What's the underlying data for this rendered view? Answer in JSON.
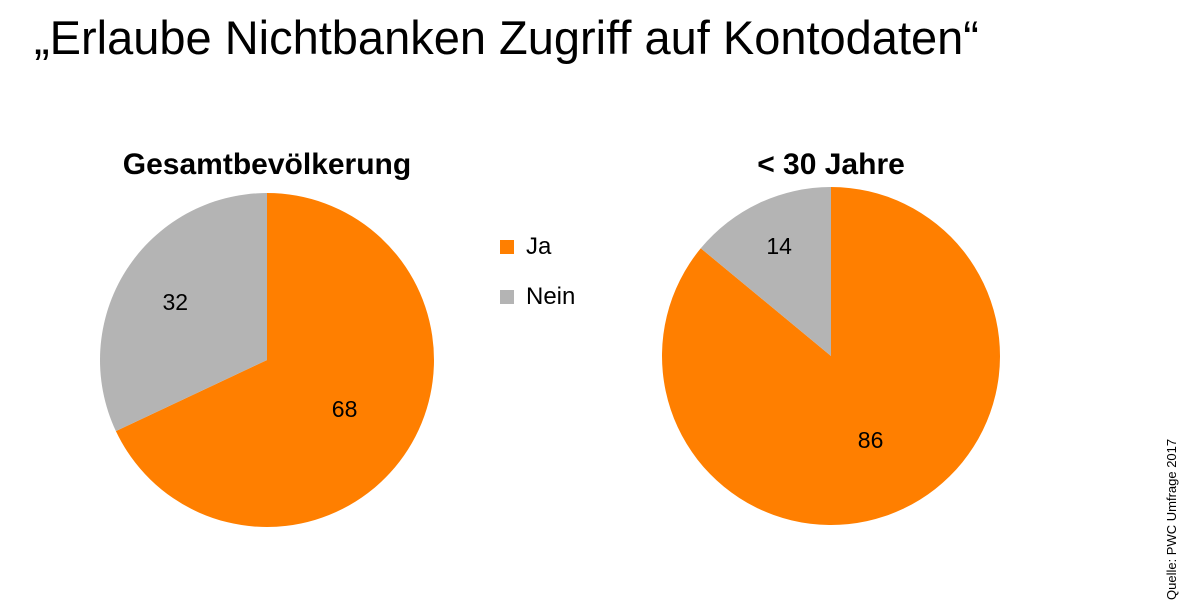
{
  "title": "„Erlaube Nichtbanken Zugriff auf Kontodaten“",
  "source": "Quelle: PWC Umfrage 2017",
  "colors": {
    "ja": "#ff7f00",
    "nein": "#b4b4b4"
  },
  "legend": [
    {
      "label": "Ja",
      "color": "#ff7f00"
    },
    {
      "label": "Nein",
      "color": "#b4b4b4"
    }
  ],
  "chart_data": [
    {
      "type": "pie",
      "title": "Gesamtbevölkerung",
      "categories": [
        "Ja",
        "Nein"
      ],
      "values": [
        68,
        32
      ],
      "data_labels": [
        "68",
        "32"
      ],
      "colors": [
        "#ff7f00",
        "#b4b4b4"
      ],
      "start_angle": "12 o'clock",
      "direction": "clockwise"
    },
    {
      "type": "pie",
      "title": "< 30 Jahre",
      "categories": [
        "Ja",
        "Nein"
      ],
      "values": [
        86,
        14
      ],
      "data_labels": [
        "86",
        "14"
      ],
      "colors": [
        "#ff7f00",
        "#b4b4b4"
      ],
      "start_angle": "12 o'clock",
      "direction": "clockwise"
    }
  ]
}
